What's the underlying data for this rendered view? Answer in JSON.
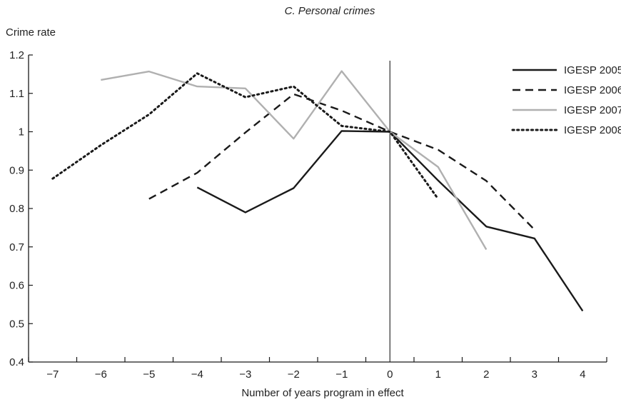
{
  "chart_data": {
    "type": "line",
    "title": "C. Personal crimes",
    "ylabel": "Crime rate",
    "xlabel": "Number of years program in effect",
    "xlim": [
      -7.5,
      4.5
    ],
    "ylim": [
      0.4,
      1.2
    ],
    "x_ticks": [
      -7,
      -6,
      -5,
      -4,
      -3,
      -2,
      -1,
      0,
      1,
      2,
      3,
      4
    ],
    "x_tick_labels": [
      "−7",
      "−6",
      "−5",
      "−4",
      "−3",
      "−2",
      "−1",
      "0",
      "1",
      "2",
      "3",
      "4"
    ],
    "y_ticks": [
      0.4,
      0.5,
      0.6,
      0.7,
      0.8,
      0.9,
      1,
      1.1,
      1.2
    ],
    "y_tick_labels": [
      "0.4",
      "0.5",
      "0.6",
      "0.7",
      "0.8",
      "0.9",
      "1",
      "1.1",
      "1.2"
    ],
    "reference_line_x": 0,
    "grid": false,
    "legend_position": "top-right",
    "series": [
      {
        "name": "IGESP 2005",
        "style": "solid",
        "color": "#1a1a1a",
        "points": [
          [
            -4,
            0.855
          ],
          [
            -3,
            0.79
          ],
          [
            -2,
            0.853
          ],
          [
            -1,
            1.002
          ],
          [
            0,
            1.0
          ],
          [
            1,
            0.873
          ],
          [
            2,
            0.753
          ],
          [
            3,
            0.722
          ],
          [
            4,
            0.533
          ]
        ]
      },
      {
        "name": "IGESP 2006",
        "style": "dashed",
        "color": "#1a1a1a",
        "points": [
          [
            -5,
            0.825
          ],
          [
            -4,
            0.893
          ],
          [
            -3,
            0.998
          ],
          [
            -2,
            1.098
          ],
          [
            -1,
            1.055
          ],
          [
            0,
            1.0
          ],
          [
            1,
            0.953
          ],
          [
            2,
            0.872
          ],
          [
            3,
            0.745
          ]
        ]
      },
      {
        "name": "IGESP 2007",
        "style": "solid",
        "color": "#b0b0b0",
        "points": [
          [
            -6,
            1.135
          ],
          [
            -5,
            1.157
          ],
          [
            -4,
            1.118
          ],
          [
            -3,
            1.113
          ],
          [
            -2,
            0.982
          ],
          [
            -1,
            1.158
          ],
          [
            0,
            1.0
          ],
          [
            1,
            0.908
          ],
          [
            2,
            0.693
          ]
        ]
      },
      {
        "name": "IGESP 2008",
        "style": "dotted",
        "color": "#1a1a1a",
        "points": [
          [
            -7,
            0.878
          ],
          [
            -6,
            0.965
          ],
          [
            -5,
            1.045
          ],
          [
            -4,
            1.152
          ],
          [
            -3,
            1.09
          ],
          [
            -2,
            1.118
          ],
          [
            -1,
            1.015
          ],
          [
            0,
            1.0
          ],
          [
            1,
            0.825
          ]
        ]
      }
    ]
  }
}
